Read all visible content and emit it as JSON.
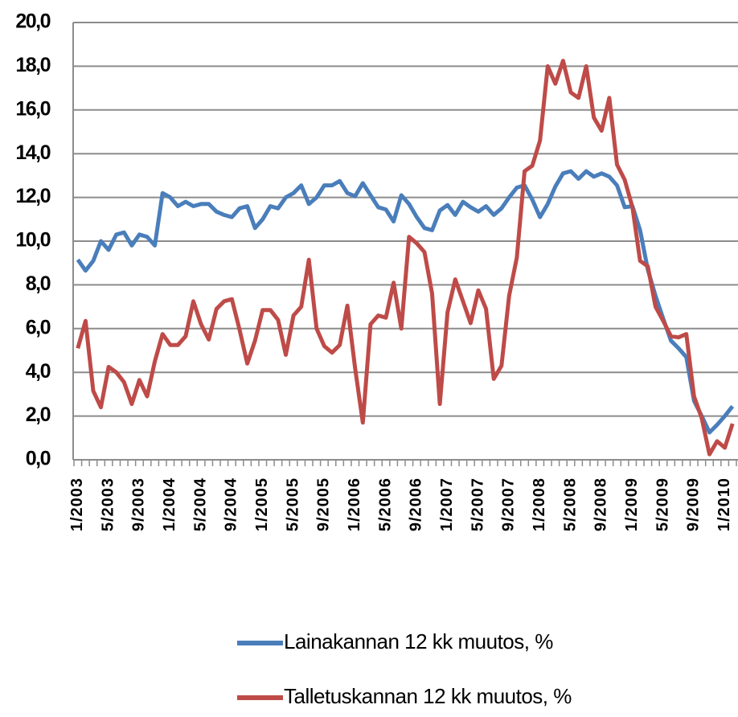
{
  "chart_data": {
    "type": "line",
    "categories": [
      "1/2003",
      null,
      null,
      null,
      "5/2003",
      null,
      null,
      null,
      "9/2003",
      null,
      null,
      null,
      "1/2004",
      null,
      null,
      null,
      "5/2004",
      null,
      null,
      null,
      "9/2004",
      null,
      null,
      null,
      "1/2005",
      null,
      null,
      null,
      "5/2005",
      null,
      null,
      null,
      "9/2005",
      null,
      null,
      null,
      "1/2006",
      null,
      null,
      null,
      "5/2006",
      null,
      null,
      null,
      "9/2006",
      null,
      null,
      null,
      "1/2007",
      null,
      null,
      null,
      "5/2007",
      null,
      null,
      null,
      "9/2007",
      null,
      null,
      null,
      "1/2008",
      null,
      null,
      null,
      "5/2008",
      null,
      null,
      null,
      "9/2008",
      null,
      null,
      null,
      "1/2009",
      null,
      null,
      null,
      "5/2009",
      null,
      null,
      null,
      "9/2009",
      null,
      null,
      null,
      "1/2010",
      null
    ],
    "series": [
      {
        "name": "Lainakannan 12 kk muutos, %",
        "color": "#4a7ebb",
        "values": [
          9.15,
          8.65,
          9.1,
          10.0,
          9.6,
          10.3,
          10.4,
          9.8,
          10.3,
          10.2,
          9.8,
          12.2,
          12.0,
          11.6,
          11.8,
          11.6,
          11.7,
          11.7,
          11.35,
          11.2,
          11.1,
          11.5,
          11.6,
          10.6,
          11.0,
          11.6,
          11.5,
          12.0,
          12.2,
          12.55,
          11.7,
          12.0,
          12.55,
          12.55,
          12.75,
          12.2,
          12.05,
          12.65,
          12.1,
          11.55,
          11.45,
          10.9,
          12.1,
          11.7,
          11.1,
          10.6,
          10.5,
          11.4,
          11.65,
          11.2,
          11.8,
          11.55,
          11.35,
          11.6,
          11.2,
          11.5,
          12.0,
          12.45,
          12.55,
          11.9,
          11.1,
          11.7,
          12.5,
          13.1,
          13.2,
          12.85,
          13.2,
          12.95,
          13.1,
          12.95,
          12.55,
          11.55,
          11.6,
          10.5,
          8.7,
          7.5,
          6.45,
          5.45,
          5.1,
          4.7,
          2.7,
          2.0,
          1.25,
          1.6,
          2.0,
          2.45
        ]
      },
      {
        "name": "Talletuskannan 12 kk muutos, %",
        "color": "#be4b48",
        "values": [
          5.1,
          6.35,
          3.15,
          2.4,
          4.25,
          4.0,
          3.55,
          2.55,
          3.65,
          2.9,
          4.5,
          5.75,
          5.25,
          5.25,
          5.65,
          7.25,
          6.2,
          5.5,
          6.9,
          7.25,
          7.35,
          5.95,
          4.4,
          5.45,
          6.85,
          6.85,
          6.4,
          4.8,
          6.6,
          7.0,
          9.15,
          6.0,
          5.2,
          4.9,
          5.25,
          7.05,
          4.2,
          1.7,
          6.2,
          6.6,
          6.5,
          8.1,
          6.0,
          10.2,
          9.9,
          9.5,
          7.6,
          2.55,
          6.75,
          8.25,
          7.25,
          6.25,
          7.75,
          6.9,
          3.7,
          4.3,
          7.5,
          9.25,
          13.2,
          13.45,
          14.6,
          18.0,
          17.2,
          18.25,
          16.8,
          16.55,
          18.0,
          15.65,
          15.05,
          16.55,
          13.5,
          12.8,
          11.55,
          9.1,
          8.85,
          7.0,
          6.35,
          5.65,
          5.6,
          5.75,
          2.9,
          1.9,
          0.25,
          0.85,
          0.55,
          1.65
        ]
      }
    ],
    "ylim": [
      0,
      20
    ],
    "yticks": [
      {
        "value": 0,
        "label": "0,0"
      },
      {
        "value": 2,
        "label": "2,0"
      },
      {
        "value": 4,
        "label": "4,0"
      },
      {
        "value": 6,
        "label": "6,0"
      },
      {
        "value": 8,
        "label": "8,0"
      },
      {
        "value": 10,
        "label": "10,0"
      },
      {
        "value": 12,
        "label": "12,0"
      },
      {
        "value": 14,
        "label": "14,0"
      },
      {
        "value": 16,
        "label": "16,0"
      },
      {
        "value": 18,
        "label": "18,0"
      },
      {
        "value": 20,
        "label": "20,0"
      }
    ],
    "grid": true
  }
}
